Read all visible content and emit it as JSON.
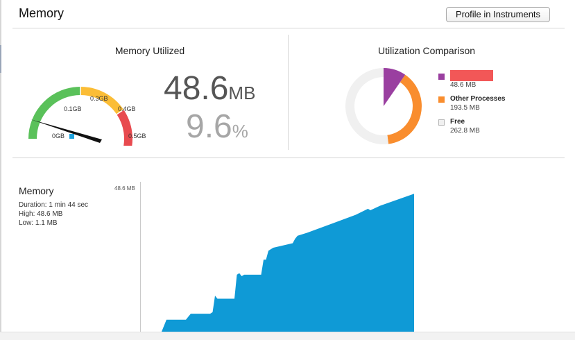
{
  "header": {
    "title": "Memory",
    "profile_button": "Profile in Instruments"
  },
  "utilized": {
    "title": "Memory Utilized",
    "value": "48.6",
    "value_unit": "MB",
    "percent": "9.6",
    "percent_unit": "%",
    "gauge": {
      "labels": [
        "0GB",
        "0.1GB",
        "0.3GB",
        "0.4GB",
        "0.5GB"
      ],
      "segment_colors": [
        "#5ac15a",
        "#fbbd36",
        "#e84a4f"
      ],
      "needle_color": "#111111",
      "marker_color": "#1fa2dd"
    }
  },
  "comparison": {
    "title": "Utilization Comparison",
    "legend": [
      {
        "name": "",
        "value": "48.6 MB",
        "color": "#9a3fa0",
        "redacted": true
      },
      {
        "name": "Other Processes",
        "value": "193.5 MB",
        "color": "#f98d2e"
      },
      {
        "name": "Free",
        "value": "262.8 MB",
        "color": "#f0f0f0"
      }
    ]
  },
  "memory_graph": {
    "title": "Memory",
    "duration": "Duration: 1 min 44 sec",
    "high": "High: 48.6 MB",
    "low": "Low: 1.1 MB",
    "axis_max_label": "48.6 MB",
    "fill_color": "#0f9ad6"
  },
  "chart_data": [
    {
      "type": "pie",
      "title": "Utilization Comparison",
      "categories": [
        "",
        "Other Processes",
        "Free"
      ],
      "values": [
        48.6,
        193.5,
        262.8
      ]
    },
    {
      "type": "area",
      "title": "Memory",
      "ylim": [
        0,
        48.6
      ],
      "xlim": [
        0,
        104
      ],
      "x": [
        0,
        2,
        10,
        11,
        12,
        20,
        21,
        22,
        23,
        30,
        31,
        32,
        33,
        34,
        40,
        41,
        42,
        43,
        44,
        45,
        46,
        54,
        55,
        56,
        60,
        70,
        80,
        85,
        86,
        90,
        104
      ],
      "y": [
        0,
        4,
        4,
        5,
        6,
        6,
        6.5,
        12,
        11,
        11,
        19,
        19.5,
        18.5,
        19,
        19,
        19,
        24,
        24,
        27,
        27.5,
        28,
        29.5,
        31,
        32,
        33,
        36,
        39,
        41,
        40.5,
        42,
        46
      ]
    }
  ]
}
